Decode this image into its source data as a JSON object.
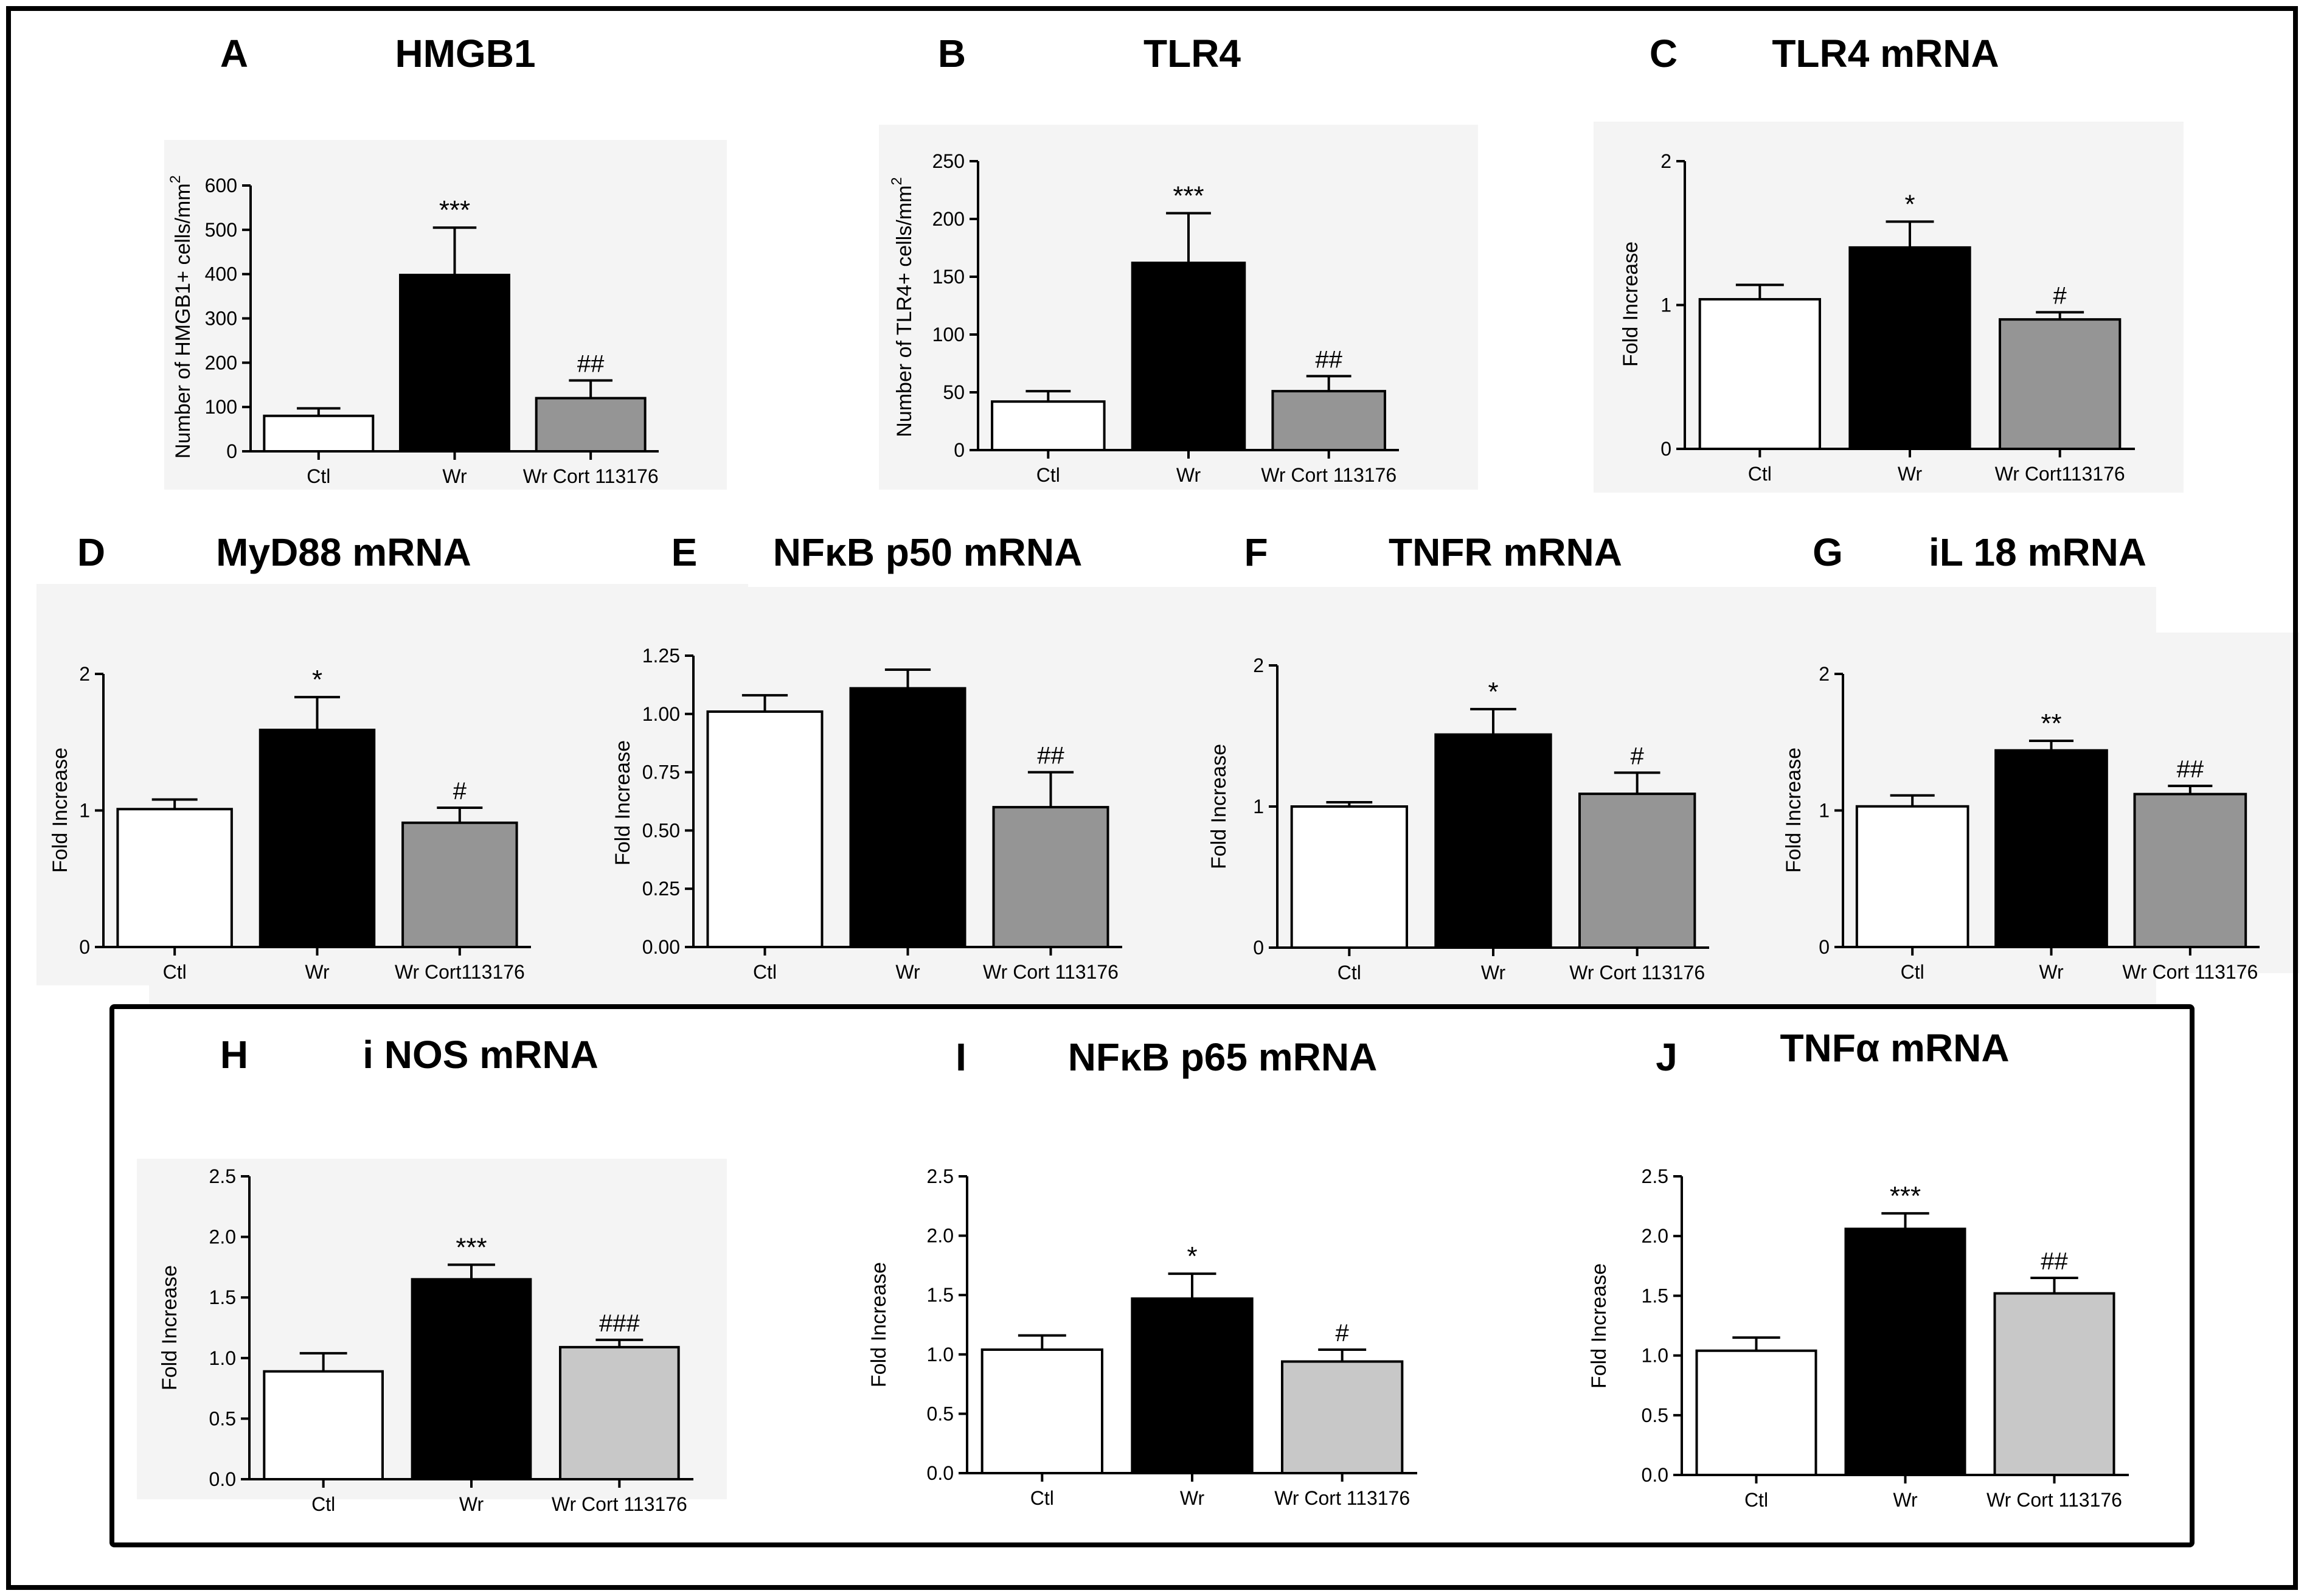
{
  "colors": {
    "ctl": "#ffffff",
    "wr": "#000000",
    "treated_dark": "#959595",
    "treated_light": "#c8c8c8",
    "panel_background": "#f4f4f4",
    "frame": "#000000"
  },
  "chart_data": [
    {
      "id": "A",
      "letter": "A",
      "title": "HMGB1",
      "type": "bar",
      "ylabel": "Number of HMGB1+ cells/mm",
      "ylabel_sup": "2",
      "categories": [
        "Ctl",
        "Wr",
        "Wr Cort 113176"
      ],
      "values": [
        80,
        398,
        120
      ],
      "errors": [
        17,
        107,
        40
      ],
      "annotations": [
        "",
        "***",
        "##"
      ],
      "ylim": [
        0,
        600
      ],
      "ticks": [
        "0",
        "100",
        "200",
        "300",
        "400",
        "500",
        "600"
      ],
      "treated_color": "dark"
    },
    {
      "id": "B",
      "letter": "B",
      "title": "TLR4",
      "type": "bar",
      "ylabel": "Number of TLR4+ cells/mm",
      "ylabel_sup": "2",
      "categories": [
        "Ctl",
        "Wr",
        "Wr Cort 113176"
      ],
      "values": [
        42,
        162,
        51
      ],
      "errors": [
        9,
        43,
        13
      ],
      "annotations": [
        "",
        "***",
        "##"
      ],
      "ylim": [
        0,
        250
      ],
      "ticks": [
        "0",
        "50",
        "100",
        "150",
        "200",
        "250"
      ],
      "treated_color": "dark"
    },
    {
      "id": "C",
      "letter": "C",
      "title": "TLR4 mRNA",
      "type": "bar",
      "ylabel": "Fold Increase",
      "ylabel_sup": "",
      "categories": [
        "Ctl",
        "Wr",
        "Wr Cort113176"
      ],
      "values": [
        1.04,
        1.4,
        0.9
      ],
      "errors": [
        0.1,
        0.18,
        0.05
      ],
      "annotations": [
        "",
        "*",
        "#"
      ],
      "ylim": [
        0,
        2
      ],
      "ticks": [
        "0",
        "1",
        "2"
      ],
      "treated_color": "dark"
    },
    {
      "id": "D",
      "letter": "D",
      "title": "MyD88 mRNA",
      "type": "bar",
      "ylabel": "Fold Increase",
      "ylabel_sup": "",
      "categories": [
        "Ctl",
        "Wr",
        "Wr Cort113176"
      ],
      "values": [
        1.01,
        1.59,
        0.91
      ],
      "errors": [
        0.07,
        0.24,
        0.11
      ],
      "annotations": [
        "",
        "*",
        "#"
      ],
      "ylim": [
        0,
        2
      ],
      "ticks": [
        "0",
        "1",
        "2"
      ],
      "treated_color": "dark"
    },
    {
      "id": "E",
      "letter": "E",
      "title": "NFκB p50 mRNA",
      "type": "bar",
      "ylabel": "Fold Increase",
      "ylabel_sup": "",
      "categories": [
        "Ctl",
        "Wr",
        "Wr Cort 113176"
      ],
      "values": [
        1.01,
        1.11,
        0.6
      ],
      "errors": [
        0.07,
        0.08,
        0.15
      ],
      "annotations": [
        "",
        "",
        "##"
      ],
      "ylim": [
        0,
        1.25
      ],
      "ticks": [
        "0.00",
        "0.25",
        "0.50",
        "0.75",
        "1.00",
        "1.25"
      ],
      "treated_color": "dark"
    },
    {
      "id": "F",
      "letter": "F",
      "title": "TNFR mRNA",
      "type": "bar",
      "ylabel": "Fold Increase",
      "ylabel_sup": "",
      "categories": [
        "Ctl",
        "Wr",
        "Wr Cort 113176"
      ],
      "values": [
        1.0,
        1.51,
        1.09
      ],
      "errors": [
        0.03,
        0.18,
        0.15
      ],
      "annotations": [
        "",
        "*",
        "#"
      ],
      "ylim": [
        0,
        2
      ],
      "ticks": [
        "0",
        "1",
        "2"
      ],
      "treated_color": "dark"
    },
    {
      "id": "G",
      "letter": "G",
      "title": "iL 18 mRNA",
      "type": "bar",
      "ylabel": "Fold Increase",
      "ylabel_sup": "",
      "categories": [
        "Ctl",
        "Wr",
        "Wr Cort 113176"
      ],
      "values": [
        1.03,
        1.44,
        1.12
      ],
      "errors": [
        0.08,
        0.07,
        0.06
      ],
      "annotations": [
        "",
        "**",
        "##"
      ],
      "ylim": [
        0,
        2
      ],
      "ticks": [
        "0",
        "1",
        "2"
      ],
      "treated_color": "dark"
    },
    {
      "id": "H",
      "letter": "H",
      "title": "i NOS mRNA",
      "type": "bar",
      "ylabel": "Fold Increase",
      "ylabel_sup": "",
      "categories": [
        "Ctl",
        "Wr",
        "Wr Cort 113176"
      ],
      "values": [
        0.89,
        1.65,
        1.09
      ],
      "errors": [
        0.15,
        0.12,
        0.06
      ],
      "annotations": [
        "",
        "***",
        "###"
      ],
      "ylim": [
        0,
        2.5
      ],
      "ticks": [
        "0.0",
        "0.5",
        "1.0",
        "1.5",
        "2.0",
        "2.5"
      ],
      "treated_color": "light"
    },
    {
      "id": "I",
      "letter": "I",
      "title": "NFκB p65 mRNA",
      "type": "bar",
      "ylabel": "Fold Increase",
      "ylabel_sup": "",
      "categories": [
        "Ctl",
        "Wr",
        "Wr Cort 113176"
      ],
      "values": [
        1.04,
        1.47,
        0.94
      ],
      "errors": [
        0.12,
        0.21,
        0.1
      ],
      "annotations": [
        "",
        "*",
        "#"
      ],
      "ylim": [
        0,
        2.5
      ],
      "ticks": [
        "0.0",
        "0.5",
        "1.0",
        "1.5",
        "2.0",
        "2.5"
      ],
      "treated_color": "light"
    },
    {
      "id": "J",
      "letter": "J",
      "title": "TNFα mRNA",
      "type": "bar",
      "ylabel": "Fold Increase",
      "ylabel_sup": "",
      "categories": [
        "Ctl",
        "Wr",
        "Wr Cort 113176"
      ],
      "values": [
        1.04,
        2.06,
        1.52
      ],
      "errors": [
        0.11,
        0.13,
        0.13
      ],
      "annotations": [
        "",
        "***",
        "##"
      ],
      "ylim": [
        0,
        2.5
      ],
      "ticks": [
        "0.0",
        "0.5",
        "1.0",
        "1.5",
        "2.0",
        "2.5"
      ],
      "treated_color": "light"
    }
  ]
}
